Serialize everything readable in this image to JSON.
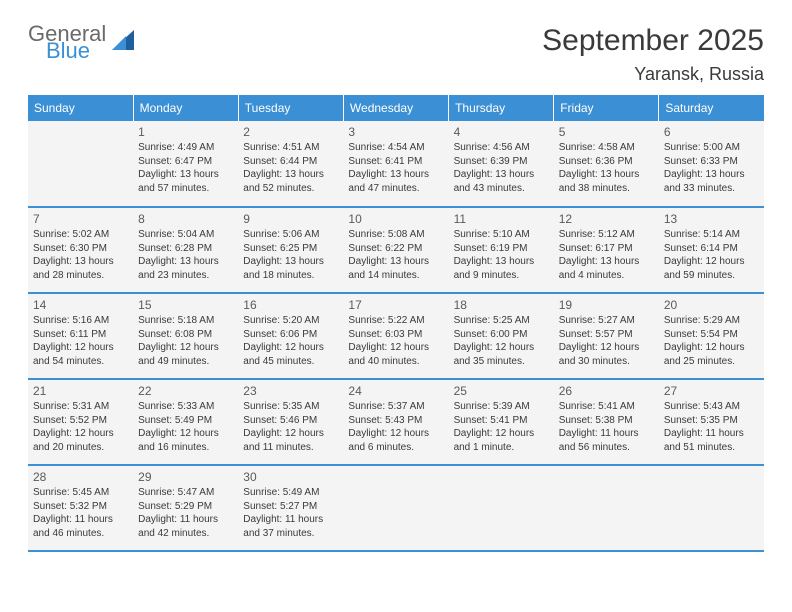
{
  "logo": {
    "word1": "General",
    "word2": "Blue",
    "sail_color": "#1f5f9e"
  },
  "title": "September 2025",
  "location": "Yaransk, Russia",
  "header_bg": "#3b8fd4",
  "cell_bg": "#f4f4f4",
  "rule_color": "#3b8fd4",
  "dow": [
    "Sunday",
    "Monday",
    "Tuesday",
    "Wednesday",
    "Thursday",
    "Friday",
    "Saturday"
  ],
  "weeks": [
    [
      null,
      {
        "n": "1",
        "sr": "4:49 AM",
        "ss": "6:47 PM",
        "dl": "13 hours and 57 minutes."
      },
      {
        "n": "2",
        "sr": "4:51 AM",
        "ss": "6:44 PM",
        "dl": "13 hours and 52 minutes."
      },
      {
        "n": "3",
        "sr": "4:54 AM",
        "ss": "6:41 PM",
        "dl": "13 hours and 47 minutes."
      },
      {
        "n": "4",
        "sr": "4:56 AM",
        "ss": "6:39 PM",
        "dl": "13 hours and 43 minutes."
      },
      {
        "n": "5",
        "sr": "4:58 AM",
        "ss": "6:36 PM",
        "dl": "13 hours and 38 minutes."
      },
      {
        "n": "6",
        "sr": "5:00 AM",
        "ss": "6:33 PM",
        "dl": "13 hours and 33 minutes."
      }
    ],
    [
      {
        "n": "7",
        "sr": "5:02 AM",
        "ss": "6:30 PM",
        "dl": "13 hours and 28 minutes."
      },
      {
        "n": "8",
        "sr": "5:04 AM",
        "ss": "6:28 PM",
        "dl": "13 hours and 23 minutes."
      },
      {
        "n": "9",
        "sr": "5:06 AM",
        "ss": "6:25 PM",
        "dl": "13 hours and 18 minutes."
      },
      {
        "n": "10",
        "sr": "5:08 AM",
        "ss": "6:22 PM",
        "dl": "13 hours and 14 minutes."
      },
      {
        "n": "11",
        "sr": "5:10 AM",
        "ss": "6:19 PM",
        "dl": "13 hours and 9 minutes."
      },
      {
        "n": "12",
        "sr": "5:12 AM",
        "ss": "6:17 PM",
        "dl": "13 hours and 4 minutes."
      },
      {
        "n": "13",
        "sr": "5:14 AM",
        "ss": "6:14 PM",
        "dl": "12 hours and 59 minutes."
      }
    ],
    [
      {
        "n": "14",
        "sr": "5:16 AM",
        "ss": "6:11 PM",
        "dl": "12 hours and 54 minutes."
      },
      {
        "n": "15",
        "sr": "5:18 AM",
        "ss": "6:08 PM",
        "dl": "12 hours and 49 minutes."
      },
      {
        "n": "16",
        "sr": "5:20 AM",
        "ss": "6:06 PM",
        "dl": "12 hours and 45 minutes."
      },
      {
        "n": "17",
        "sr": "5:22 AM",
        "ss": "6:03 PM",
        "dl": "12 hours and 40 minutes."
      },
      {
        "n": "18",
        "sr": "5:25 AM",
        "ss": "6:00 PM",
        "dl": "12 hours and 35 minutes."
      },
      {
        "n": "19",
        "sr": "5:27 AM",
        "ss": "5:57 PM",
        "dl": "12 hours and 30 minutes."
      },
      {
        "n": "20",
        "sr": "5:29 AM",
        "ss": "5:54 PM",
        "dl": "12 hours and 25 minutes."
      }
    ],
    [
      {
        "n": "21",
        "sr": "5:31 AM",
        "ss": "5:52 PM",
        "dl": "12 hours and 20 minutes."
      },
      {
        "n": "22",
        "sr": "5:33 AM",
        "ss": "5:49 PM",
        "dl": "12 hours and 16 minutes."
      },
      {
        "n": "23",
        "sr": "5:35 AM",
        "ss": "5:46 PM",
        "dl": "12 hours and 11 minutes."
      },
      {
        "n": "24",
        "sr": "5:37 AM",
        "ss": "5:43 PM",
        "dl": "12 hours and 6 minutes."
      },
      {
        "n": "25",
        "sr": "5:39 AM",
        "ss": "5:41 PM",
        "dl": "12 hours and 1 minute."
      },
      {
        "n": "26",
        "sr": "5:41 AM",
        "ss": "5:38 PM",
        "dl": "11 hours and 56 minutes."
      },
      {
        "n": "27",
        "sr": "5:43 AM",
        "ss": "5:35 PM",
        "dl": "11 hours and 51 minutes."
      }
    ],
    [
      {
        "n": "28",
        "sr": "5:45 AM",
        "ss": "5:32 PM",
        "dl": "11 hours and 46 minutes."
      },
      {
        "n": "29",
        "sr": "5:47 AM",
        "ss": "5:29 PM",
        "dl": "11 hours and 42 minutes."
      },
      {
        "n": "30",
        "sr": "5:49 AM",
        "ss": "5:27 PM",
        "dl": "11 hours and 37 minutes."
      },
      null,
      null,
      null,
      null
    ]
  ],
  "labels": {
    "sunrise": "Sunrise:",
    "sunset": "Sunset:",
    "daylight": "Daylight:"
  }
}
